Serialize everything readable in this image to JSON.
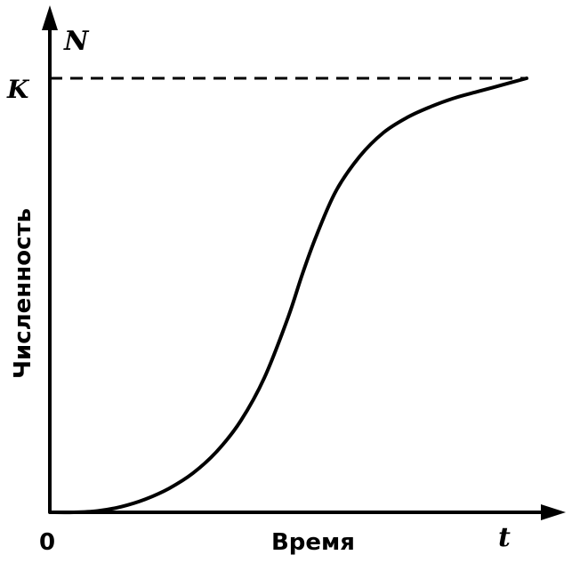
{
  "chart_data": {
    "type": "line",
    "title": "",
    "xlabel": "Время",
    "ylabel": "Численность",
    "x_axis_symbol": "t",
    "y_axis_symbol": "N",
    "origin_label": "0",
    "capacity_label": "K",
    "capacity_value": 1.0,
    "xlim": [
      0,
      10
    ],
    "ylim": [
      0,
      1.0
    ],
    "grid": false,
    "legend": "none",
    "colors": {
      "line": "#000000",
      "background": "#ffffff"
    },
    "series": [
      {
        "x": [
          0,
          0.5,
          1.0,
          1.5,
          2.0,
          2.5,
          3.0,
          3.5,
          4.0,
          4.5,
          5.0,
          5.3,
          5.6,
          6.0,
          6.5,
          7.0,
          7.5,
          8.0,
          8.5,
          9.0,
          9.5,
          10.0
        ],
        "values": [
          0.0,
          0.0,
          0.003,
          0.013,
          0.03,
          0.055,
          0.09,
          0.14,
          0.21,
          0.31,
          0.45,
          0.55,
          0.64,
          0.74,
          0.82,
          0.875,
          0.91,
          0.935,
          0.955,
          0.97,
          0.985,
          1.0
        ]
      }
    ]
  }
}
